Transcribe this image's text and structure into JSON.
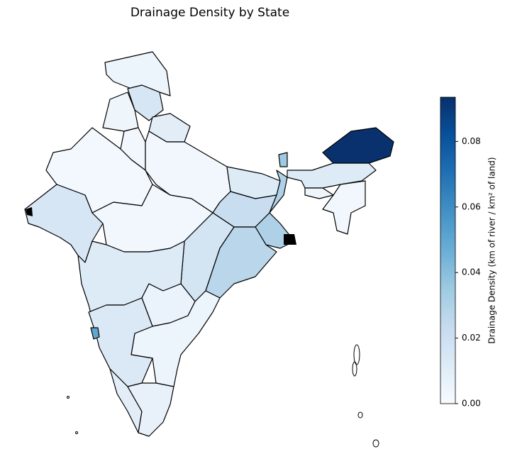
{
  "chart_data": {
    "type": "choropleth",
    "title": "Drainage Density by State",
    "colorbar_label": "Drainage Density (km of river / km² of land)",
    "colormap": "Blues",
    "values": [
      0.005,
      0.015,
      0.004,
      0.01,
      0.003,
      0.002,
      0.015,
      0.003,
      0.003,
      0.012,
      0.022,
      0.03,
      0.017,
      0.027,
      0.012,
      0.006,
      0.005,
      0.013,
      0.05,
      0.01,
      0.007,
      0.035,
      0.093,
      0.012,
      0.004,
      0.003
    ],
    "clim": [
      0,
      0.0935
    ],
    "cticks": [
      {
        "value": 0,
        "label": "0.00"
      },
      {
        "value": 0.02,
        "label": "0.02"
      },
      {
        "value": 0.04,
        "label": "0.04"
      },
      {
        "value": 0.06,
        "label": "0.06"
      },
      {
        "value": 0.08,
        "label": "0.08"
      }
    ]
  }
}
